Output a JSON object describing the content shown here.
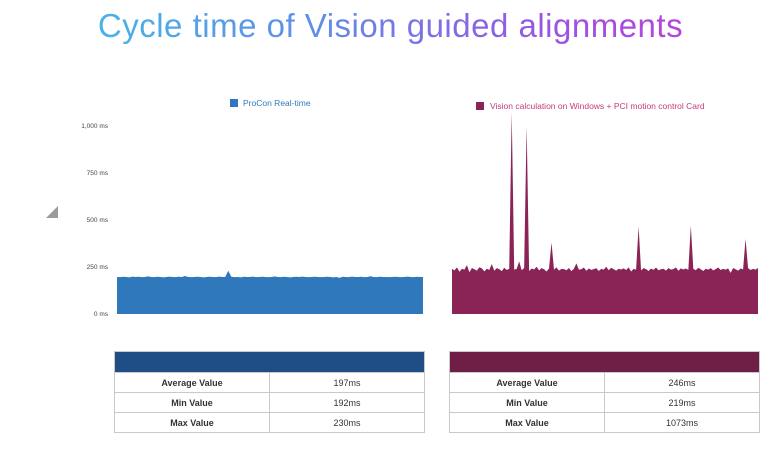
{
  "title": "Cycle time of Vision guided alignments",
  "colors": {
    "series1": "#2f78bb",
    "series2": "#8a2457",
    "legend1_text": "#2f78bb",
    "legend2_text": "#c33b7c",
    "header1": "#1f4e86",
    "header2": "#6f1f46"
  },
  "chart_data": {
    "type": "area",
    "title": "Cycle time of Vision guided alignments",
    "ylim": [
      0,
      1000
    ],
    "yticks": [
      0,
      250,
      500,
      750,
      1000
    ],
    "ytick_labels": [
      "0 ms",
      "250 ms",
      "500 ms",
      "750 ms",
      "1,000 ms"
    ],
    "grid": false,
    "series": [
      {
        "name": "ProCon Real-time",
        "base": 197,
        "samples": [
          197,
          196,
          198,
          197,
          195,
          199,
          197,
          198,
          196,
          197,
          200,
          197,
          196,
          198,
          197,
          195,
          197,
          199,
          197,
          196,
          198,
          197,
          202,
          197,
          196,
          197,
          198,
          197,
          195,
          197,
          198,
          197,
          196,
          199,
          197,
          197,
          230,
          198,
          196,
          197,
          195,
          198,
          197,
          197,
          199,
          196,
          197,
          198,
          197,
          196,
          197,
          200,
          197,
          196,
          198,
          197,
          195,
          197,
          198,
          197,
          199,
          197,
          196,
          197,
          198,
          197,
          196,
          197,
          198,
          197,
          195,
          197,
          192,
          198,
          197,
          196,
          199,
          197,
          197,
          198,
          196,
          197,
          201,
          197,
          196,
          198,
          197,
          197,
          196,
          197,
          198,
          197,
          196,
          197,
          199,
          197,
          196,
          198,
          197,
          197
        ]
      },
      {
        "name": "Vision calculation on Windows + PCI motion control Card",
        "base": 240,
        "samples": [
          240,
          232,
          248,
          225,
          241,
          236,
          260,
          222,
          245,
          238,
          231,
          249,
          243,
          227,
          241,
          235,
          266,
          230,
          244,
          239,
          228,
          246,
          234,
          241,
          1073,
          236,
          240,
          280,
          233,
          245,
          1000,
          229,
          242,
          237,
          251,
          232,
          244,
          238,
          226,
          243,
          380,
          236,
          248,
          231,
          240,
          239,
          233,
          245,
          228,
          241,
          269,
          236,
          238,
          247,
          230,
          242,
          235,
          239,
          244,
          229,
          240,
          236,
          251,
          233,
          246,
          238,
          231,
          241,
          237,
          243,
          234,
          248,
          226,
          240,
          236,
          465,
          232,
          244,
          239,
          229,
          242,
          235,
          247,
          233,
          238,
          241,
          231,
          244,
          236,
          239,
          248,
          230,
          243,
          237,
          242,
          235,
          470,
          240,
          233,
          246,
          238,
          229,
          241,
          236,
          244,
          232,
          239,
          247,
          234,
          240,
          236,
          243,
          219,
          245,
          238,
          231,
          242,
          237,
          400,
          244,
          234,
          240,
          236,
          245
        ]
      }
    ]
  },
  "legend": {
    "series1": "ProCon Real-time",
    "series2": "Vision calculation on Windows + PCI motion control Card"
  },
  "table1": {
    "rows": [
      {
        "label": "Average Value",
        "value": "197ms"
      },
      {
        "label": "Min Value",
        "value": "192ms"
      },
      {
        "label": "Max Value",
        "value": "230ms"
      }
    ]
  },
  "table2": {
    "rows": [
      {
        "label": "Average Value",
        "value": "246ms"
      },
      {
        "label": "Min Value",
        "value": "219ms"
      },
      {
        "label": "Max Value",
        "value": "1073ms"
      }
    ]
  }
}
